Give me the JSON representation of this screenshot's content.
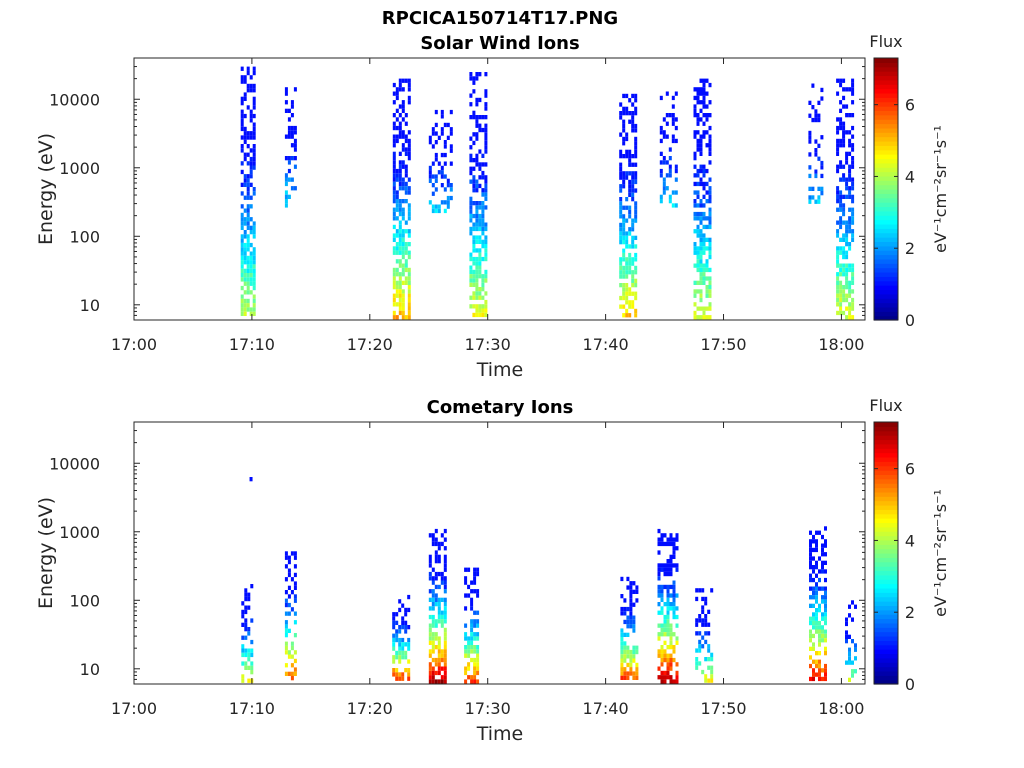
{
  "figure_title": "RPCICA150714T17.PNG",
  "chart_data": [
    {
      "type": "heatmap",
      "title": "Solar Wind Ions",
      "xlabel": "Time",
      "ylabel": "Energy (eV)",
      "x_ticks": [
        "17:00",
        "17:10",
        "17:20",
        "17:30",
        "17:40",
        "17:50",
        "18:00"
      ],
      "x_range_minutes": [
        0,
        62
      ],
      "y_scale": "log",
      "y_ticks": [
        "10",
        "100",
        "1000",
        "10000"
      ],
      "y_range": [
        6,
        40000
      ],
      "colorbar": {
        "title": "Flux",
        "label": "eV⁻¹cm⁻²sr⁻¹s⁻¹",
        "ticks": [
          "0",
          "2",
          "4",
          "6"
        ],
        "range": [
          0,
          7.3
        ],
        "colormap": "jet"
      },
      "bursts": [
        {
          "t": 9.6,
          "width": 1.1,
          "e_min": 6,
          "e_max": 30000,
          "peak_flux": 4.2,
          "density": 0.7
        },
        {
          "t": 13.3,
          "width": 1.0,
          "e_min": 300,
          "e_max": 15000,
          "peak_flux": 2.6,
          "density": 0.45
        },
        {
          "t": 22.6,
          "width": 1.3,
          "e_min": 6,
          "e_max": 20000,
          "peak_flux": 5.2,
          "density": 0.75
        },
        {
          "t": 26.0,
          "width": 2.0,
          "e_min": 250,
          "e_max": 7000,
          "peak_flux": 2.4,
          "density": 0.4
        },
        {
          "t": 29.2,
          "width": 1.5,
          "e_min": 6,
          "e_max": 25000,
          "peak_flux": 4.6,
          "density": 0.75
        },
        {
          "t": 41.8,
          "width": 1.3,
          "e_min": 6,
          "e_max": 12000,
          "peak_flux": 5.0,
          "density": 0.75
        },
        {
          "t": 45.3,
          "width": 1.4,
          "e_min": 300,
          "e_max": 15000,
          "peak_flux": 2.5,
          "density": 0.4
        },
        {
          "t": 48.2,
          "width": 1.5,
          "e_min": 6,
          "e_max": 20000,
          "peak_flux": 4.4,
          "density": 0.75
        },
        {
          "t": 57.8,
          "width": 1.2,
          "e_min": 300,
          "e_max": 17000,
          "peak_flux": 2.4,
          "density": 0.4
        },
        {
          "t": 60.2,
          "width": 1.3,
          "e_min": 6,
          "e_max": 20000,
          "peak_flux": 4.4,
          "density": 0.75
        }
      ]
    },
    {
      "type": "heatmap",
      "title": "Cometary Ions",
      "xlabel": "Time",
      "ylabel": "Energy (eV)",
      "x_ticks": [
        "17:00",
        "17:10",
        "17:20",
        "17:30",
        "17:40",
        "17:50",
        "18:00"
      ],
      "x_range_minutes": [
        0,
        62
      ],
      "y_scale": "log",
      "y_ticks": [
        "10",
        "100",
        "1000",
        "10000"
      ],
      "y_range": [
        6,
        40000
      ],
      "colorbar": {
        "title": "Flux",
        "label": "eV⁻¹cm⁻²sr⁻¹s⁻¹",
        "ticks": [
          "0",
          "2",
          "4",
          "6"
        ],
        "range": [
          0,
          7.3
        ],
        "colormap": "jet"
      },
      "bursts": [
        {
          "t": 9.6,
          "width": 1.0,
          "e_min": 6,
          "e_max": 200,
          "peak_flux": 4.5,
          "density": 0.5
        },
        {
          "t": 13.3,
          "width": 1.0,
          "e_min": 6,
          "e_max": 600,
          "peak_flux": 6.0,
          "density": 0.55
        },
        {
          "t": 22.6,
          "width": 1.4,
          "e_min": 6,
          "e_max": 120,
          "peak_flux": 6.4,
          "density": 0.7
        },
        {
          "t": 25.7,
          "width": 1.4,
          "e_min": 6,
          "e_max": 1100,
          "peak_flux": 7.0,
          "density": 0.75
        },
        {
          "t": 28.6,
          "width": 1.2,
          "e_min": 6,
          "e_max": 300,
          "peak_flux": 6.0,
          "density": 0.7
        },
        {
          "t": 41.9,
          "width": 1.3,
          "e_min": 6,
          "e_max": 220,
          "peak_flux": 6.2,
          "density": 0.65
        },
        {
          "t": 45.2,
          "width": 1.6,
          "e_min": 6,
          "e_max": 1100,
          "peak_flux": 7.0,
          "density": 0.75
        },
        {
          "t": 48.3,
          "width": 1.4,
          "e_min": 6,
          "e_max": 150,
          "peak_flux": 4.5,
          "density": 0.5
        },
        {
          "t": 57.9,
          "width": 1.3,
          "e_min": 6,
          "e_max": 1200,
          "peak_flux": 6.6,
          "density": 0.7
        },
        {
          "t": 60.8,
          "width": 1.0,
          "e_min": 6,
          "e_max": 100,
          "peak_flux": 4.2,
          "density": 0.45
        }
      ],
      "isolated_points": [
        {
          "t": 9.8,
          "energy": 6300,
          "flux": 1.0
        }
      ]
    }
  ]
}
